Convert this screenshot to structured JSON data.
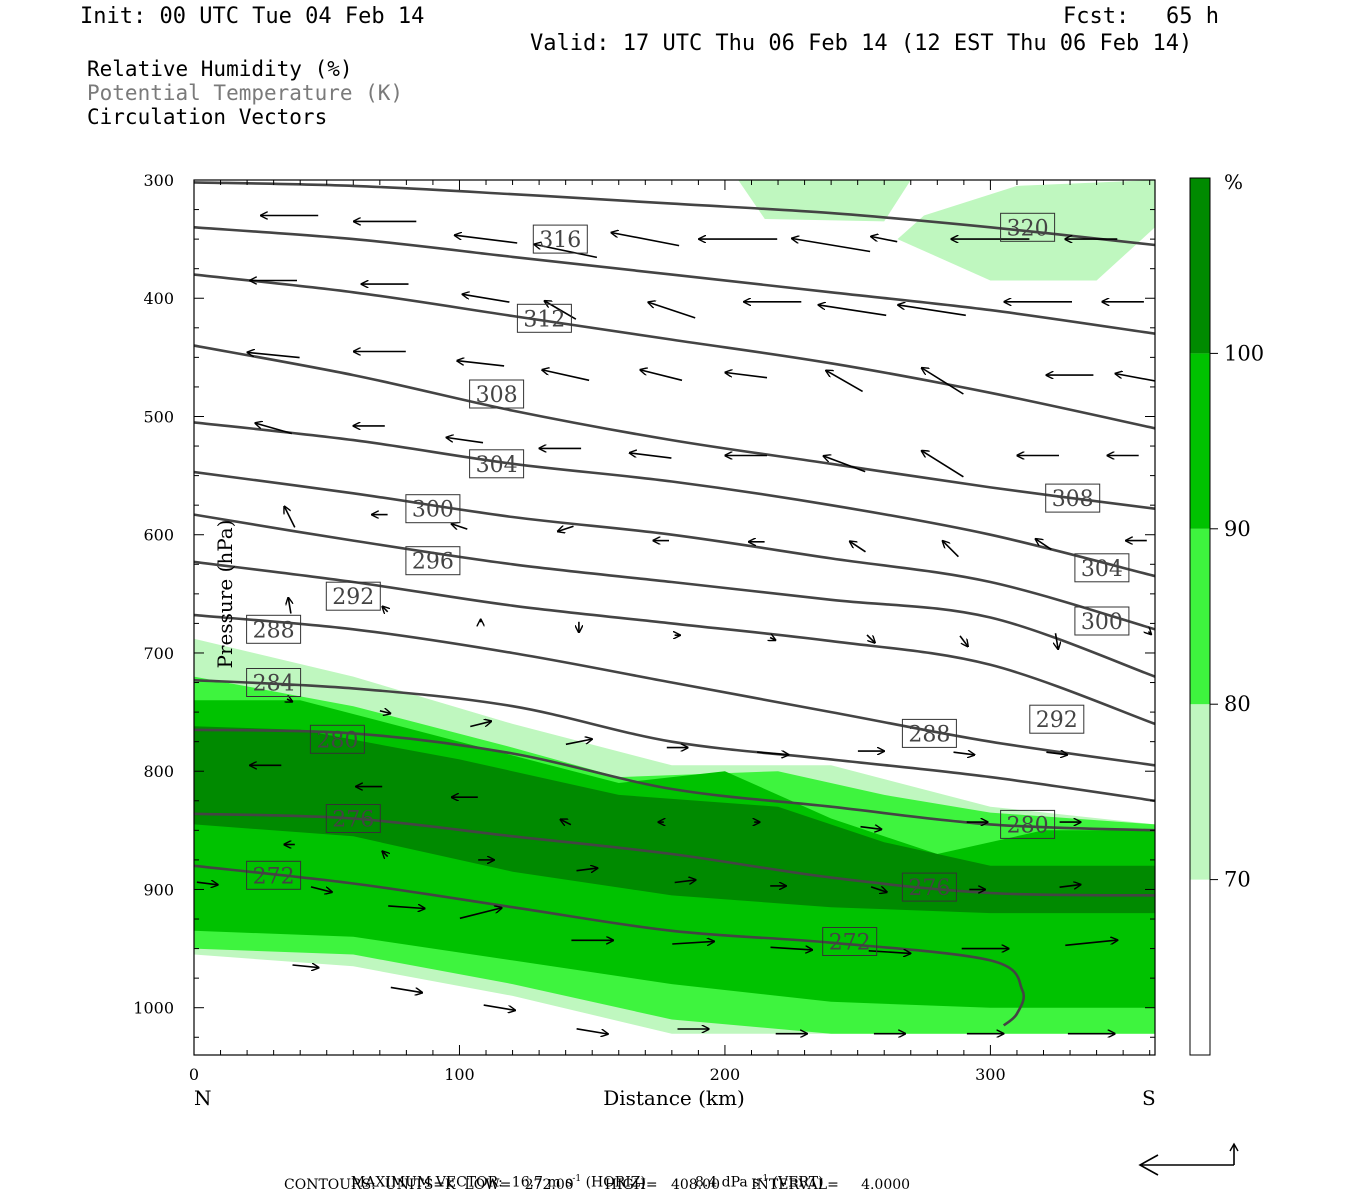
{
  "header": {
    "init": "Init: 00 UTC Tue 04 Feb 14",
    "fcst_label": "Fcst:",
    "fcst_value": "65 h",
    "valid": "Valid: 17 UTC Thu 06 Feb 14 (12 EST Thu 06 Feb 14)"
  },
  "legend": {
    "line1": "Relative Humidity (%)",
    "line2": "Potential Temperature (K)",
    "line3": "Circulation Vectors"
  },
  "footer": {
    "max_vector_label": "MAXIMUM VECTOR:",
    "horiz_value": "16.7 m s",
    "horiz_unit": "(HORIZ)",
    "vert_value": "8.4 dPa s",
    "vert_unit": "(VERT)",
    "superscript": "-1",
    "contours": "CONTOURS:  UNITS=K  LOW=   272.00       HIGH=   408.00       INTERVAL=     4.0000"
  },
  "colors": {
    "rh70": "#bff7bf",
    "rh80": "#3ef43e",
    "rh90": "#00c200",
    "rh100": "#008a00",
    "theta_line": "#444444",
    "vector": "#000000"
  },
  "chart_data": {
    "type": "cross-section",
    "xlabel": "Distance (km)",
    "ylabel": "Pressure (hPa)",
    "xlim": [
      0,
      362
    ],
    "ylim": [
      1040,
      300
    ],
    "x_ticks": [
      0,
      100,
      200,
      300
    ],
    "y_ticks": [
      300,
      400,
      500,
      600,
      700,
      800,
      900,
      1000
    ],
    "x_end_labels": {
      "left": "N",
      "right": "S"
    },
    "colorbar": {
      "unit": "%",
      "levels": [
        70,
        80,
        90,
        100
      ],
      "colors": [
        "#ffffff",
        "#bff7bf",
        "#3ef43e",
        "#00c200",
        "#008a00"
      ]
    },
    "theta_contours": [
      {
        "label": "272",
        "x": [
          0,
          60,
          120,
          180,
          240,
          300,
          312,
          310,
          305
        ],
        "p": [
          880,
          895,
          915,
          935,
          945,
          960,
          985,
          1005,
          1015
        ],
        "label_at": [
          247,
          944
        ]
      },
      {
        "label": "276",
        "x": [
          0,
          60,
          120,
          180,
          240,
          300,
          362
        ],
        "p": [
          836,
          840,
          855,
          870,
          890,
          903,
          905
        ],
        "label_at": [
          264,
          897
        ]
      },
      {
        "label": "280",
        "x": [
          0,
          60,
          120,
          180,
          240,
          300,
          362
        ],
        "p": [
          765,
          768,
          785,
          815,
          830,
          845,
          850
        ],
        "label_at": [
          312,
          845
        ]
      },
      {
        "label": "284",
        "x": [
          0,
          60,
          120,
          180,
          240,
          300,
          362
        ],
        "p": [
          723,
          730,
          745,
          775,
          790,
          805,
          825
        ],
        "label_at": [
          29,
          725
        ]
      },
      {
        "label": "288",
        "x": [
          0,
          60,
          120,
          180,
          240,
          300,
          362
        ],
        "p": [
          668,
          680,
          700,
          725,
          750,
          775,
          795
        ],
        "label_at": [
          277,
          768
        ]
      },
      {
        "label": "292",
        "x": [
          0,
          60,
          120,
          180,
          240,
          300,
          362
        ],
        "p": [
          623,
          640,
          660,
          675,
          690,
          710,
          760
        ],
        "label_at": [
          316,
          755
        ]
      },
      {
        "label": "296",
        "x": [
          0,
          60,
          120,
          180,
          240,
          300,
          362
        ],
        "p": [
          583,
          605,
          625,
          640,
          655,
          670,
          720
        ],
        "label_at": [
          90,
          623
        ]
      },
      {
        "label": "300",
        "x": [
          0,
          60,
          120,
          180,
          240,
          300,
          362
        ],
        "p": [
          547,
          565,
          585,
          600,
          620,
          640,
          680
        ],
        "label_at": [
          342,
          672
        ]
      },
      {
        "label": "304",
        "x": [
          0,
          60,
          120,
          180,
          240,
          300,
          362
        ],
        "p": [
          505,
          520,
          540,
          555,
          575,
          600,
          635
        ],
        "label_at": [
          342,
          628
        ]
      },
      {
        "label": "308",
        "x": [
          0,
          60,
          120,
          180,
          240,
          300,
          362
        ],
        "p": [
          440,
          465,
          495,
          520,
          540,
          560,
          578
        ],
        "label_at": [
          331,
          565
        ]
      },
      {
        "label": "312",
        "x": [
          0,
          60,
          120,
          180,
          240,
          300,
          362
        ],
        "p": [
          380,
          395,
          415,
          435,
          455,
          480,
          510
        ],
        "label_at": [
          115,
          468
        ]
      },
      {
        "label": "316",
        "x": [
          0,
          60,
          120,
          180,
          240,
          300,
          362
        ],
        "p": [
          340,
          350,
          365,
          380,
          395,
          410,
          430
        ],
        "label_at": [
          131,
          418
        ]
      },
      {
        "label": "320",
        "x": [
          0,
          60,
          120,
          180,
          240,
          300,
          362
        ],
        "p": [
          302,
          305,
          312,
          320,
          328,
          340,
          355
        ],
        "label_at": [
          331,
          340
        ]
      }
    ],
    "theta_label_boxes": [
      {
        "label": "316",
        "x": 138,
        "p": 350
      },
      {
        "label": "320",
        "x": 314,
        "p": 340
      },
      {
        "label": "312",
        "x": 132,
        "p": 417
      },
      {
        "label": "308",
        "x": 114,
        "p": 481
      },
      {
        "label": "304",
        "x": 114,
        "p": 540
      },
      {
        "label": "300",
        "x": 90,
        "p": 578
      },
      {
        "label": "296",
        "x": 90,
        "p": 622
      },
      {
        "label": "292",
        "x": 60,
        "p": 652
      },
      {
        "label": "288",
        "x": 30,
        "p": 680
      },
      {
        "label": "284",
        "x": 30,
        "p": 725
      },
      {
        "label": "280",
        "x": 54,
        "p": 773
      },
      {
        "label": "276",
        "x": 60,
        "p": 840
      },
      {
        "label": "272",
        "x": 30,
        "p": 888
      },
      {
        "label": "308",
        "x": 331,
        "p": 569
      },
      {
        "label": "304",
        "x": 342,
        "p": 628
      },
      {
        "label": "300",
        "x": 342,
        "p": 673
      },
      {
        "label": "292",
        "x": 325,
        "p": 756
      },
      {
        "label": "288",
        "x": 277,
        "p": 768
      },
      {
        "label": "280",
        "x": 314,
        "p": 845
      },
      {
        "label": "276",
        "x": 277,
        "p": 898
      },
      {
        "label": "272",
        "x": 247,
        "p": 944
      }
    ],
    "rh_regions": [
      {
        "level": 70,
        "x": [
          0,
          60,
          120,
          180,
          240,
          300,
          362,
          362,
          300,
          240,
          180,
          120,
          60,
          0
        ],
        "p": [
          688,
          720,
          760,
          795,
          795,
          830,
          845,
          1022,
          1022,
          1022,
          1022,
          990,
          965,
          955
        ]
      },
      {
        "level": 80,
        "x": [
          0,
          60,
          120,
          160,
          220,
          260,
          300,
          362,
          362,
          300,
          240,
          180,
          120,
          60,
          0
        ],
        "p": [
          720,
          745,
          780,
          805,
          800,
          820,
          835,
          845,
          1022,
          1022,
          1022,
          1010,
          980,
          955,
          950
        ]
      },
      {
        "level": 90,
        "x": [
          0,
          40,
          100,
          160,
          200,
          240,
          280,
          320,
          362,
          362,
          300,
          240,
          180,
          120,
          60,
          0
        ],
        "p": [
          740,
          740,
          775,
          810,
          800,
          840,
          870,
          850,
          850,
          1000,
          1000,
          995,
          980,
          960,
          940,
          935
        ]
      },
      {
        "level": 100,
        "x": [
          0,
          40,
          100,
          160,
          220,
          260,
          300,
          362,
          362,
          300,
          240,
          180,
          120,
          60,
          0
        ],
        "p": [
          762,
          765,
          790,
          820,
          830,
          860,
          880,
          880,
          920,
          920,
          915,
          905,
          885,
          855,
          845
        ]
      },
      {
        "level": 70,
        "x": [
          205,
          240,
          270,
          260,
          215
        ],
        "p": [
          300,
          300,
          300,
          335,
          333
        ]
      },
      {
        "level": 70,
        "x": [
          275,
          310,
          362,
          362,
          340,
          300,
          265
        ],
        "p": [
          330,
          305,
          300,
          340,
          385,
          385,
          350
        ]
      }
    ],
    "vectors": [
      {
        "x": 36,
        "p": 330,
        "u": -22,
        "w": 0
      },
      {
        "x": 72,
        "p": 335,
        "u": -24,
        "w": 0
      },
      {
        "x": 110,
        "p": 350,
        "u": -24,
        "w": 3
      },
      {
        "x": 140,
        "p": 360,
        "u": -24,
        "w": 5
      },
      {
        "x": 170,
        "p": 350,
        "u": -26,
        "w": 5
      },
      {
        "x": 205,
        "p": 350,
        "u": -30,
        "w": 0
      },
      {
        "x": 240,
        "p": 355,
        "u": -30,
        "w": 5
      },
      {
        "x": 260,
        "p": 350,
        "u": -10,
        "w": 2
      },
      {
        "x": 300,
        "p": 350,
        "u": -30,
        "w": 0
      },
      {
        "x": 338,
        "p": 350,
        "u": -20,
        "w": 0
      },
      {
        "x": 30,
        "p": 385,
        "u": -18,
        "w": 0
      },
      {
        "x": 72,
        "p": 388,
        "u": -18,
        "w": 0
      },
      {
        "x": 110,
        "p": 400,
        "u": -18,
        "w": 3
      },
      {
        "x": 138,
        "p": 410,
        "u": -12,
        "w": 7
      },
      {
        "x": 180,
        "p": 410,
        "u": -18,
        "w": 6
      },
      {
        "x": 218,
        "p": 403,
        "u": -22,
        "w": 0
      },
      {
        "x": 248,
        "p": 410,
        "u": -26,
        "w": 4
      },
      {
        "x": 278,
        "p": 410,
        "u": -26,
        "w": 4
      },
      {
        "x": 318,
        "p": 403,
        "u": -26,
        "w": 0
      },
      {
        "x": 350,
        "p": 403,
        "u": -16,
        "w": 0
      },
      {
        "x": 30,
        "p": 448,
        "u": -20,
        "w": 2
      },
      {
        "x": 70,
        "p": 445,
        "u": -20,
        "w": 0
      },
      {
        "x": 108,
        "p": 455,
        "u": -18,
        "w": 2
      },
      {
        "x": 140,
        "p": 465,
        "u": -18,
        "w": 4
      },
      {
        "x": 176,
        "p": 465,
        "u": -16,
        "w": 4
      },
      {
        "x": 208,
        "p": 465,
        "u": -16,
        "w": 2
      },
      {
        "x": 245,
        "p": 470,
        "u": -14,
        "w": 8
      },
      {
        "x": 282,
        "p": 470,
        "u": -16,
        "w": 10
      },
      {
        "x": 330,
        "p": 465,
        "u": -18,
        "w": 0
      },
      {
        "x": 355,
        "p": 467,
        "u": -16,
        "w": 3
      },
      {
        "x": 30,
        "p": 510,
        "u": -14,
        "w": 4
      },
      {
        "x": 66,
        "p": 508,
        "u": -12,
        "w": 0
      },
      {
        "x": 102,
        "p": 520,
        "u": -14,
        "w": 2
      },
      {
        "x": 138,
        "p": 527,
        "u": -16,
        "w": 0
      },
      {
        "x": 172,
        "p": 533,
        "u": -16,
        "w": 2
      },
      {
        "x": 208,
        "p": 533,
        "u": -16,
        "w": 0
      },
      {
        "x": 245,
        "p": 540,
        "u": -16,
        "w": 6
      },
      {
        "x": 282,
        "p": 540,
        "u": -16,
        "w": 10
      },
      {
        "x": 318,
        "p": 533,
        "u": -16,
        "w": 0
      },
      {
        "x": 350,
        "p": 533,
        "u": -12,
        "w": 0
      },
      {
        "x": 36,
        "p": 585,
        "u": -4,
        "w": 8
      },
      {
        "x": 70,
        "p": 583,
        "u": -6,
        "w": 0
      },
      {
        "x": 100,
        "p": 593,
        "u": -6,
        "w": 2
      },
      {
        "x": 140,
        "p": 595,
        "u": -6,
        "w": -2
      },
      {
        "x": 176,
        "p": 605,
        "u": -6,
        "w": 0
      },
      {
        "x": 212,
        "p": 606,
        "u": -6,
        "w": 0
      },
      {
        "x": 250,
        "p": 610,
        "u": -6,
        "w": 4
      },
      {
        "x": 285,
        "p": 612,
        "u": -6,
        "w": 6
      },
      {
        "x": 320,
        "p": 608,
        "u": -6,
        "w": 4
      },
      {
        "x": 355,
        "p": 605,
        "u": -8,
        "w": 0
      },
      {
        "x": 36,
        "p": 660,
        "u": -1,
        "w": 6
      },
      {
        "x": 72,
        "p": 663,
        "u": -2,
        "w": 2
      },
      {
        "x": 108,
        "p": 673,
        "u": 0,
        "w": 1
      },
      {
        "x": 145,
        "p": 678,
        "u": 0,
        "w": -4
      },
      {
        "x": 182,
        "p": 685,
        "u": 2,
        "w": 0
      },
      {
        "x": 218,
        "p": 688,
        "u": 2,
        "w": -1
      },
      {
        "x": 255,
        "p": 688,
        "u": 3,
        "w": -3
      },
      {
        "x": 290,
        "p": 690,
        "u": 3,
        "w": -4
      },
      {
        "x": 325,
        "p": 690,
        "u": 1,
        "w": -6
      },
      {
        "x": 360,
        "p": 683,
        "u": 1,
        "w": -1
      },
      {
        "x": 36,
        "p": 740,
        "u": 2,
        "w": -1
      },
      {
        "x": 72,
        "p": 750,
        "u": 4,
        "w": -1
      },
      {
        "x": 108,
        "p": 760,
        "u": 8,
        "w": 2
      },
      {
        "x": 145,
        "p": 775,
        "u": 10,
        "w": 2
      },
      {
        "x": 182,
        "p": 780,
        "u": 8,
        "w": 0
      },
      {
        "x": 218,
        "p": 785,
        "u": 12,
        "w": -1
      },
      {
        "x": 255,
        "p": 783,
        "u": 10,
        "w": 0
      },
      {
        "x": 290,
        "p": 785,
        "u": 8,
        "w": -1
      },
      {
        "x": 325,
        "p": 785,
        "u": 8,
        "w": -1
      },
      {
        "x": 27,
        "p": 795,
        "u": -12,
        "w": 0
      },
      {
        "x": 66,
        "p": 813,
        "u": -10,
        "w": 0
      },
      {
        "x": 102,
        "p": 822,
        "u": -10,
        "w": 0
      },
      {
        "x": 140,
        "p": 843,
        "u": -4,
        "w": 2
      },
      {
        "x": 176,
        "p": 843,
        "u": -2,
        "w": 0
      },
      {
        "x": 212,
        "p": 843,
        "u": 2,
        "w": 0
      },
      {
        "x": 255,
        "p": 848,
        "u": 8,
        "w": -1
      },
      {
        "x": 295,
        "p": 843,
        "u": 8,
        "w": 0
      },
      {
        "x": 330,
        "p": 843,
        "u": 8,
        "w": 0
      },
      {
        "x": 36,
        "p": 862,
        "u": -4,
        "w": 0
      },
      {
        "x": 72,
        "p": 870,
        "u": -2,
        "w": 2
      },
      {
        "x": 110,
        "p": 875,
        "u": 6,
        "w": 0
      },
      {
        "x": 148,
        "p": 883,
        "u": 8,
        "w": 1
      },
      {
        "x": 185,
        "p": 893,
        "u": 8,
        "w": 1
      },
      {
        "x": 220,
        "p": 897,
        "u": 6,
        "w": 0
      },
      {
        "x": 258,
        "p": 900,
        "u": 6,
        "w": -2
      },
      {
        "x": 295,
        "p": 900,
        "u": 6,
        "w": 0
      },
      {
        "x": 330,
        "p": 897,
        "u": 8,
        "w": 1
      },
      {
        "x": 5,
        "p": 895,
        "u": 8,
        "w": -1
      },
      {
        "x": 48,
        "p": 900,
        "u": 8,
        "w": -2
      },
      {
        "x": 80,
        "p": 915,
        "u": 14,
        "w": -1
      },
      {
        "x": 108,
        "p": 920,
        "u": 16,
        "w": 4
      },
      {
        "x": 150,
        "p": 943,
        "u": 16,
        "w": 0
      },
      {
        "x": 188,
        "p": 945,
        "u": 16,
        "w": 1
      },
      {
        "x": 225,
        "p": 950,
        "u": 16,
        "w": -1
      },
      {
        "x": 262,
        "p": 953,
        "u": 16,
        "w": -1
      },
      {
        "x": 298,
        "p": 950,
        "u": 18,
        "w": 0
      },
      {
        "x": 338,
        "p": 945,
        "u": 20,
        "w": 2
      },
      {
        "x": 42,
        "p": 965,
        "u": 10,
        "w": -1
      },
      {
        "x": 80,
        "p": 985,
        "u": 12,
        "w": -2
      },
      {
        "x": 115,
        "p": 1000,
        "u": 12,
        "w": -2
      },
      {
        "x": 150,
        "p": 1020,
        "u": 12,
        "w": -2
      },
      {
        "x": 188,
        "p": 1018,
        "u": 12,
        "w": 0
      },
      {
        "x": 225,
        "p": 1022,
        "u": 12,
        "w": 0
      },
      {
        "x": 262,
        "p": 1022,
        "u": 12,
        "w": 0
      },
      {
        "x": 298,
        "p": 1022,
        "u": 14,
        "w": 0
      },
      {
        "x": 338,
        "p": 1022,
        "u": 18,
        "w": 0
      }
    ]
  }
}
